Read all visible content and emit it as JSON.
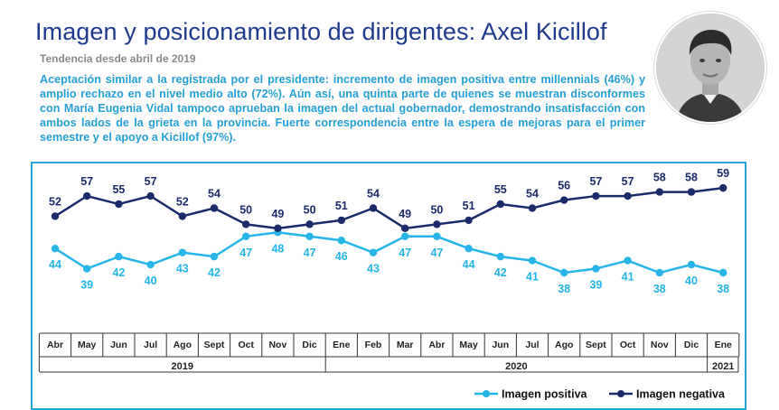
{
  "header": {
    "title": "Imagen y posicionamiento de dirigentes: Axel Kicillof",
    "subtitle": "Tendencia desde abril de 2019",
    "description": "Aceptación similar a la registrada por el presidente: incremento de imagen positiva entre millennials (46%) y amplio rechazo en el nivel medio alto (72%). Aún así, una quinta parte de quienes se muestran disconformes con María Eugenia Vidal tampoco aprueban la imagen del actual gobernador, demostrando insatisfacción con ambos lados de la grieta en la provincia. Fuerte correspondencia entre la espera de mejoras para el primer semestre y el apoyo a Kicillof (97%)."
  },
  "colors": {
    "title": "#1f3a8c",
    "text_accent": "#27a0d8",
    "positive": "#26b5e8",
    "negative": "#1b2a6b",
    "frame": "#26a8df"
  },
  "chart_data": {
    "type": "line",
    "categories": [
      "Abr",
      "May",
      "Jun",
      "Jul",
      "Ago",
      "Sept",
      "Oct",
      "Nov",
      "Dic",
      "Ene",
      "Feb",
      "Mar",
      "Abr",
      "May",
      "Jun",
      "Jul",
      "Ago",
      "Sept",
      "Oct",
      "Nov",
      "Dic",
      "Ene"
    ],
    "years": [
      {
        "label": "2019",
        "from": 0,
        "to": 8
      },
      {
        "label": "2020",
        "from": 9,
        "to": 20
      },
      {
        "label": "2021",
        "from": 21,
        "to": 21
      }
    ],
    "series": [
      {
        "name": "Imagen positiva",
        "color": "#26b5e8",
        "values": [
          44,
          39,
          42,
          40,
          43,
          42,
          47,
          48,
          47,
          46,
          43,
          47,
          47,
          44,
          42,
          41,
          38,
          39,
          41,
          38,
          40,
          38
        ]
      },
      {
        "name": "Imagen negativa",
        "color": "#1b2a6b",
        "values": [
          52,
          57,
          55,
          57,
          52,
          54,
          50,
          49,
          50,
          51,
          54,
          49,
          50,
          51,
          55,
          54,
          56,
          57,
          57,
          58,
          58,
          59
        ]
      }
    ],
    "legend_position": "bottom-right",
    "grid": false
  }
}
